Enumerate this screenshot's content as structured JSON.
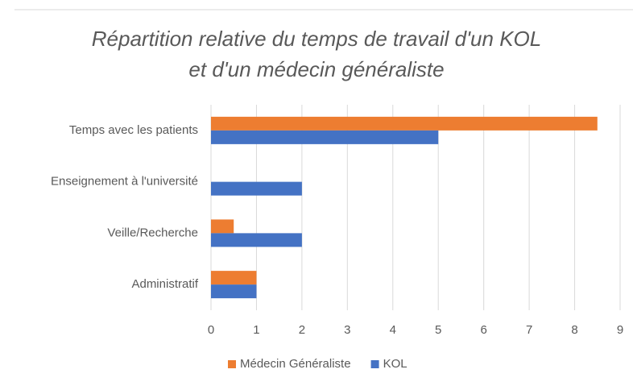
{
  "chart_data": {
    "type": "bar",
    "orientation": "horizontal",
    "title": [
      "Répartition relative du temps de travail d'un KOL",
      "et d'un médecin généraliste"
    ],
    "categories": [
      "Temps avec les patients",
      "Enseignement à l'université",
      "Veille/Recherche",
      "Administratif"
    ],
    "series": [
      {
        "name": "Médecin Généraliste",
        "color": "#ed7d31",
        "values": [
          8.5,
          0,
          0.5,
          1
        ]
      },
      {
        "name": "KOL",
        "color": "#4472c4",
        "values": [
          5,
          2,
          2,
          1
        ]
      }
    ],
    "xlim": [
      0,
      9
    ],
    "xticks": [
      0,
      1,
      2,
      3,
      4,
      5,
      6,
      7,
      8,
      9
    ],
    "grid": true,
    "legend": "bottom"
  }
}
